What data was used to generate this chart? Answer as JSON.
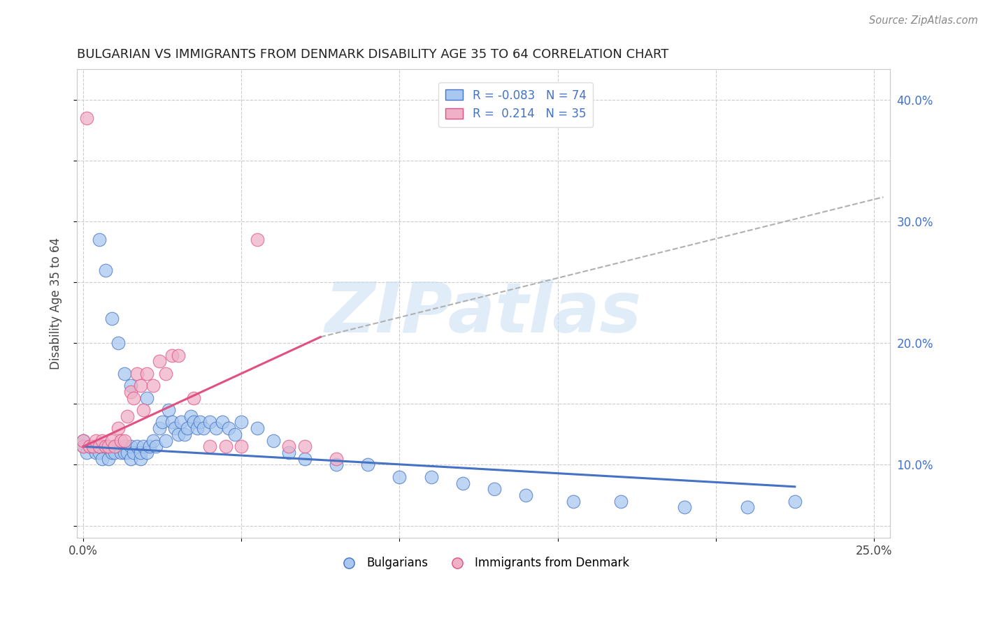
{
  "title": "BULGARIAN VS IMMIGRANTS FROM DENMARK DISABILITY AGE 35 TO 64 CORRELATION CHART",
  "source_text": "Source: ZipAtlas.com",
  "ylabel": "Disability Age 35 to 64",
  "xlim": [
    -0.002,
    0.255
  ],
  "ylim": [
    0.04,
    0.425
  ],
  "xtick_positions": [
    0.0,
    0.05,
    0.1,
    0.15,
    0.2,
    0.25
  ],
  "xticklabels": [
    "0.0%",
    "",
    "",
    "",
    "",
    "25.0%"
  ],
  "ytick_positions": [
    0.05,
    0.1,
    0.15,
    0.2,
    0.25,
    0.3,
    0.35,
    0.4
  ],
  "ytick_labels_left": [
    "",
    "",
    "",
    "",
    "",
    "",
    "",
    ""
  ],
  "right_ytick_positions": [
    0.1,
    0.2,
    0.3,
    0.4
  ],
  "right_ytick_labels": [
    "10.0%",
    "20.0%",
    "30.0%",
    "40.0%"
  ],
  "watermark_text": "ZIPatlas",
  "legend_r1": "R = -0.083",
  "legend_n1": "N = 74",
  "legend_r2": "R =  0.214",
  "legend_n2": "N = 35",
  "blue_color": "#4472c4",
  "pink_color": "#e05080",
  "blue_scatter_face": "#a8c8f0",
  "pink_scatter_face": "#f0b0c8",
  "blue_line_x0": 0.0,
  "blue_line_x1": 0.225,
  "blue_line_y0": 0.115,
  "blue_line_y1": 0.082,
  "pink_line_x0": 0.0,
  "pink_line_x1": 0.075,
  "pink_line_y0": 0.115,
  "pink_line_y1": 0.205,
  "dashed_line_x0": 0.075,
  "dashed_line_x1": 0.253,
  "dashed_line_y0": 0.205,
  "dashed_line_y1": 0.32,
  "blue_scatter_x": [
    0.0,
    0.0,
    0.001,
    0.002,
    0.003,
    0.004,
    0.005,
    0.005,
    0.006,
    0.007,
    0.008,
    0.009,
    0.01,
    0.01,
    0.011,
    0.012,
    0.013,
    0.013,
    0.014,
    0.015,
    0.015,
    0.016,
    0.017,
    0.018,
    0.018,
    0.019,
    0.02,
    0.021,
    0.022,
    0.023,
    0.024,
    0.025,
    0.026,
    0.027,
    0.028,
    0.029,
    0.03,
    0.031,
    0.032,
    0.033,
    0.034,
    0.035,
    0.036,
    0.037,
    0.038,
    0.04,
    0.042,
    0.044,
    0.046,
    0.048,
    0.05,
    0.055,
    0.06,
    0.065,
    0.07,
    0.08,
    0.09,
    0.1,
    0.11,
    0.12,
    0.13,
    0.14,
    0.155,
    0.17,
    0.19,
    0.21,
    0.225,
    0.005,
    0.007,
    0.009,
    0.011,
    0.013,
    0.015,
    0.02
  ],
  "blue_scatter_y": [
    0.115,
    0.12,
    0.11,
    0.115,
    0.115,
    0.11,
    0.11,
    0.115,
    0.105,
    0.115,
    0.105,
    0.11,
    0.115,
    0.11,
    0.115,
    0.11,
    0.115,
    0.11,
    0.11,
    0.115,
    0.105,
    0.11,
    0.115,
    0.105,
    0.11,
    0.115,
    0.11,
    0.115,
    0.12,
    0.115,
    0.13,
    0.135,
    0.12,
    0.145,
    0.135,
    0.13,
    0.125,
    0.135,
    0.125,
    0.13,
    0.14,
    0.135,
    0.13,
    0.135,
    0.13,
    0.135,
    0.13,
    0.135,
    0.13,
    0.125,
    0.135,
    0.13,
    0.12,
    0.11,
    0.105,
    0.1,
    0.1,
    0.09,
    0.09,
    0.085,
    0.08,
    0.075,
    0.07,
    0.07,
    0.065,
    0.065,
    0.07,
    0.285,
    0.26,
    0.22,
    0.2,
    0.175,
    0.165,
    0.155
  ],
  "pink_scatter_x": [
    0.0,
    0.0,
    0.001,
    0.002,
    0.003,
    0.004,
    0.005,
    0.006,
    0.007,
    0.008,
    0.009,
    0.01,
    0.011,
    0.012,
    0.013,
    0.014,
    0.015,
    0.016,
    0.017,
    0.018,
    0.019,
    0.02,
    0.022,
    0.024,
    0.026,
    0.028,
    0.03,
    0.035,
    0.04,
    0.045,
    0.05,
    0.055,
    0.065,
    0.07,
    0.08
  ],
  "pink_scatter_y": [
    0.115,
    0.12,
    0.385,
    0.115,
    0.115,
    0.12,
    0.115,
    0.12,
    0.115,
    0.115,
    0.12,
    0.115,
    0.13,
    0.12,
    0.12,
    0.14,
    0.16,
    0.155,
    0.175,
    0.165,
    0.145,
    0.175,
    0.165,
    0.185,
    0.175,
    0.19,
    0.19,
    0.155,
    0.115,
    0.115,
    0.115,
    0.285,
    0.115,
    0.115,
    0.105
  ]
}
